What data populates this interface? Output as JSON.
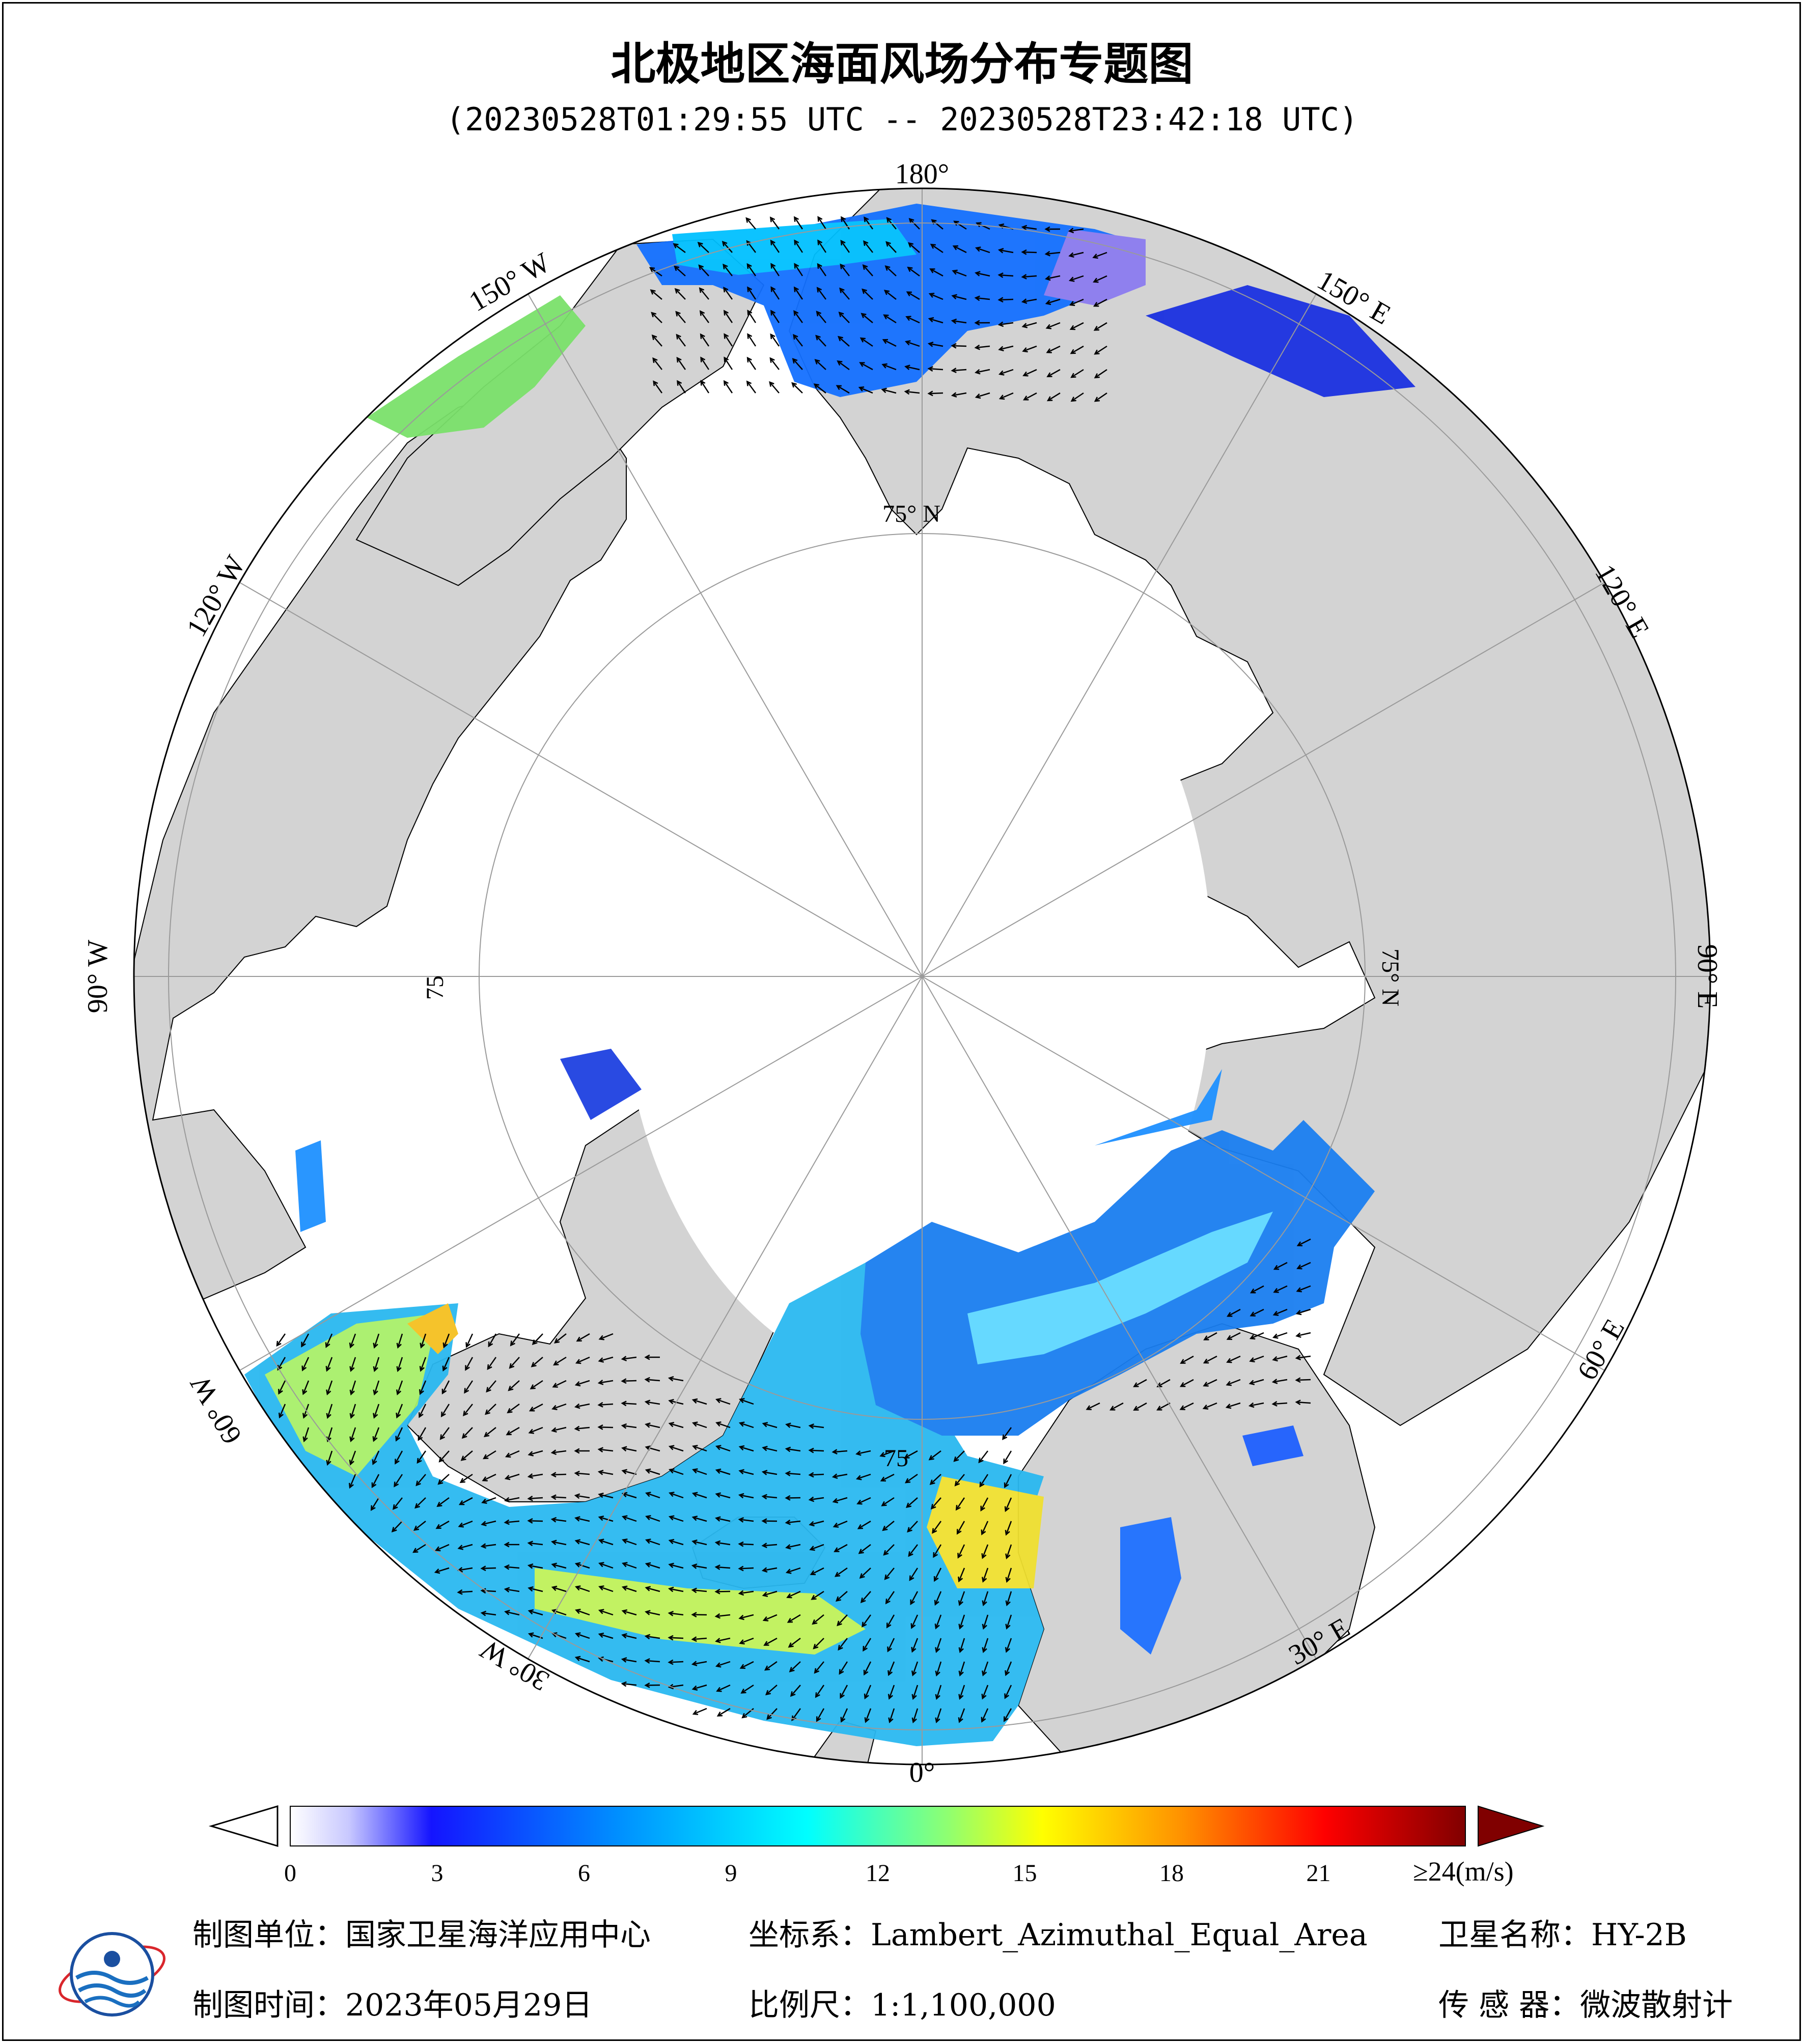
{
  "title": "北极地区海面风场分布专题图",
  "subtitle": "(20230528T01:29:55 UTC -- 20230528T23:42:18 UTC)",
  "map": {
    "projection": "Lambert_Azimuthal_Equal_Area",
    "center": "North Pole",
    "longitude_labels": {
      "lon_0": "0°",
      "lon_30e": "30° E",
      "lon_60e": "60° E",
      "lon_90e": "90° E",
      "lon_120e": "120° E",
      "lon_150e": "150° E",
      "lon_180": "180°",
      "lon_150w": "150° W",
      "lon_120w": "120° W",
      "lon_90w": "90° W",
      "lon_60w": "60° W",
      "lon_30w": "30° W"
    },
    "latitude_labels": {
      "lat_top": "75° N",
      "lat_right": "75° N",
      "lat_left": "75",
      "lat_bottom": "75"
    },
    "colors": {
      "land": "#d3d3d3",
      "ice": "#ffffff",
      "ocean_background": "#ffffff",
      "coastline": "#000000"
    }
  },
  "colorbar": {
    "ticks": [
      "0",
      "3",
      "6",
      "9",
      "12",
      "15",
      "18",
      "21"
    ],
    "max_label": "≥24",
    "unit": "(m/s)",
    "range": [
      0,
      24
    ],
    "colormap": [
      "#ffffff",
      "#c8c8ff",
      "#1414ff",
      "#00a0ff",
      "#00ffff",
      "#80ff80",
      "#ffff00",
      "#ff8000",
      "#ff0000",
      "#800000"
    ]
  },
  "footer": {
    "organization_label": "制图单位：国家卫星海洋应用中心",
    "date_label": "制图时间：2023年05月29日",
    "crs_label": "坐标系：Lambert_Azimuthal_Equal_Area",
    "scale_label": "比例尺：1:1,100,000",
    "satellite_label": "卫星名称：HY-2B",
    "sensor_label": "传 感 器：微波散射计"
  }
}
